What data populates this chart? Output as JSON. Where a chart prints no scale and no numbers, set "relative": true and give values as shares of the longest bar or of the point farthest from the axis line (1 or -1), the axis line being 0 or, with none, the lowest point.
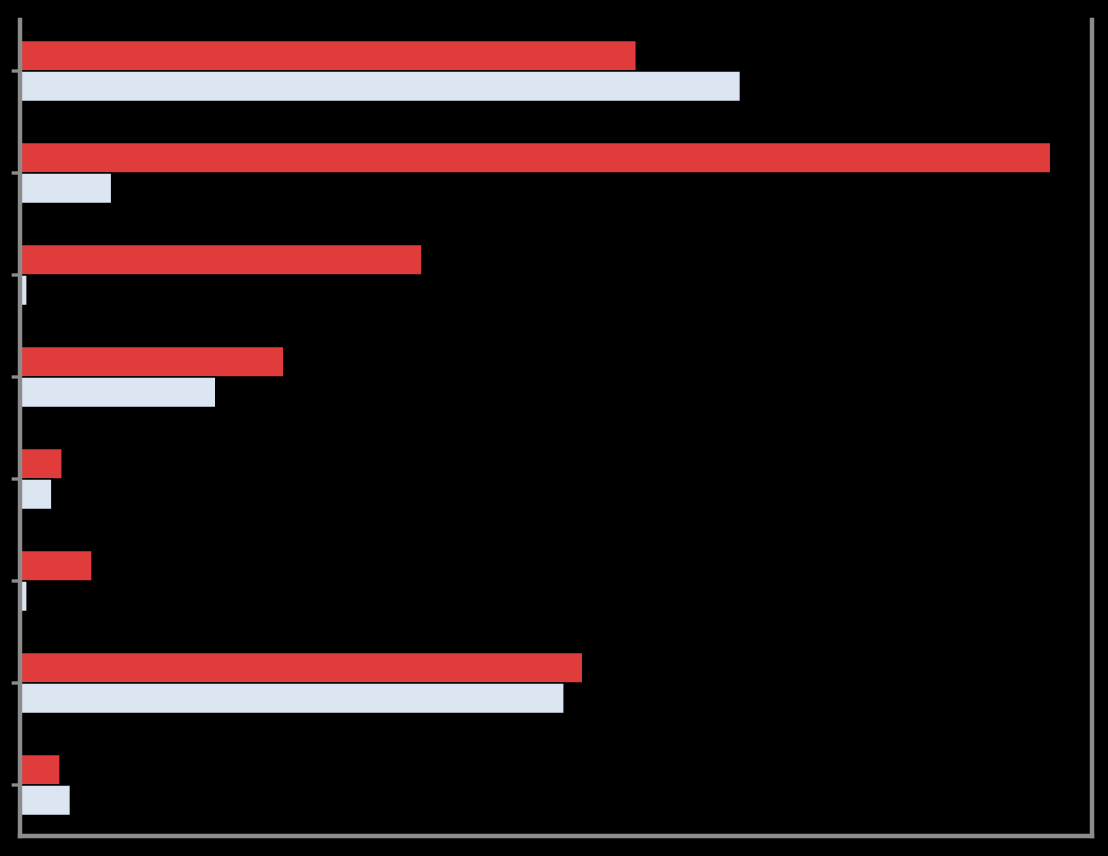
{
  "chart_data": {
    "type": "bar",
    "orientation": "horizontal",
    "relative": true,
    "categories": [
      null,
      null,
      null,
      null,
      null,
      null,
      null,
      null
    ],
    "series": [
      {
        "color": "#e03c3c",
        "values": [
          0.598,
          1.0,
          0.39,
          0.256,
          0.041,
          0.07,
          0.546,
          0.039
        ]
      },
      {
        "color": "#dce6f2",
        "values": [
          0.699,
          0.089,
          0.007,
          0.19,
          0.031,
          0.007,
          0.528,
          0.049
        ]
      }
    ]
  }
}
